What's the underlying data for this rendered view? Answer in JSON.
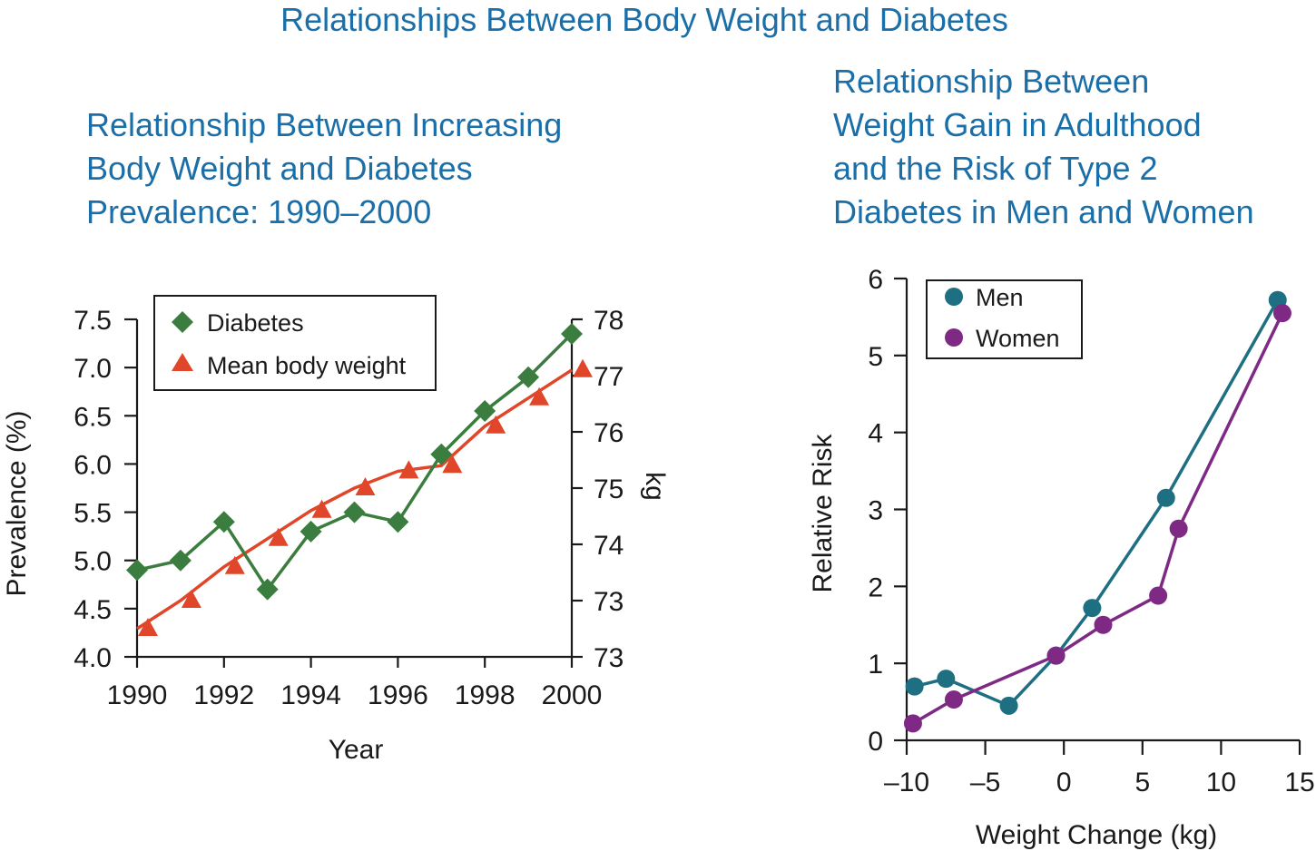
{
  "title": "Relationships Between Body Weight and Diabetes",
  "colors": {
    "title": "#1a6fa8",
    "diabetes": "#3a7d3e",
    "weight": "#e0462a",
    "men": "#1f6f83",
    "women": "#7e2a84"
  },
  "chart_data": [
    {
      "type": "line",
      "title_lines": [
        "Relationship Between Increasing",
        "Body Weight and Diabetes",
        "Prevalence: 1990–2000"
      ],
      "xlabel": "Year",
      "ylabel": "Prevalence (%)",
      "y2label": "kg",
      "xlim": [
        1990,
        2000
      ],
      "ylim": [
        4.0,
        7.5
      ],
      "y2lim": [
        72,
        78
      ],
      "x_ticks": [
        "1990",
        "1992",
        "1994",
        "1996",
        "1998",
        "2000"
      ],
      "y_ticks": [
        "4.0",
        "4.5",
        "5.0",
        "5.5",
        "6.0",
        "6.5",
        "7.0",
        "7.5"
      ],
      "y2_ticks": [
        "73",
        "73",
        "74",
        "75",
        "76",
        "77",
        "78"
      ],
      "legend": {
        "placement": "top-left",
        "entries": [
          "Diabetes",
          "Mean body weight"
        ]
      },
      "series": [
        {
          "name": "Diabetes",
          "marker": "diamond",
          "axis": "left",
          "x": [
            1990,
            1991,
            1992,
            1993,
            1994,
            1995,
            1996,
            1997,
            1998,
            1999,
            2000
          ],
          "values": [
            4.9,
            5.0,
            5.4,
            4.7,
            5.3,
            5.5,
            5.4,
            6.1,
            6.55,
            6.9,
            7.35
          ]
        },
        {
          "name": "Mean body weight",
          "marker": "triangle",
          "axis": "right",
          "x": [
            1990,
            1991,
            1992,
            1993,
            1994,
            1995,
            1996,
            1997,
            1998,
            1999,
            2000
          ],
          "values": [
            72.5,
            73.0,
            73.6,
            74.1,
            74.6,
            75.0,
            75.3,
            75.4,
            76.1,
            76.6,
            77.1
          ]
        }
      ]
    },
    {
      "type": "line",
      "title_lines": [
        "Relationship Between",
        "Weight Gain in Adulthood",
        "and the Risk of Type 2",
        "Diabetes in Men and Women"
      ],
      "xlabel": "Weight Change (kg)",
      "ylabel": "Relative Risk",
      "xlim": [
        -10,
        15
      ],
      "ylim": [
        0,
        6
      ],
      "x_ticks": [
        "–10",
        "–5",
        "0",
        "5",
        "10",
        "15"
      ],
      "y_ticks": [
        "0",
        "1",
        "2",
        "3",
        "4",
        "5",
        "6"
      ],
      "legend": {
        "placement": "top-left",
        "entries": [
          "Men",
          "Women"
        ]
      },
      "series": [
        {
          "name": "Men",
          "marker": "circle",
          "x": [
            -9.5,
            -7.5,
            -3.5,
            -0.5,
            1.8,
            6.5,
            13.6
          ],
          "values": [
            0.7,
            0.8,
            0.45,
            1.1,
            1.72,
            3.15,
            5.72
          ]
        },
        {
          "name": "Women",
          "marker": "circle",
          "x": [
            -9.6,
            -7.0,
            -0.5,
            2.5,
            6.0,
            7.3,
            13.9
          ],
          "values": [
            0.22,
            0.53,
            1.1,
            1.5,
            1.88,
            2.75,
            5.55
          ]
        }
      ]
    }
  ]
}
